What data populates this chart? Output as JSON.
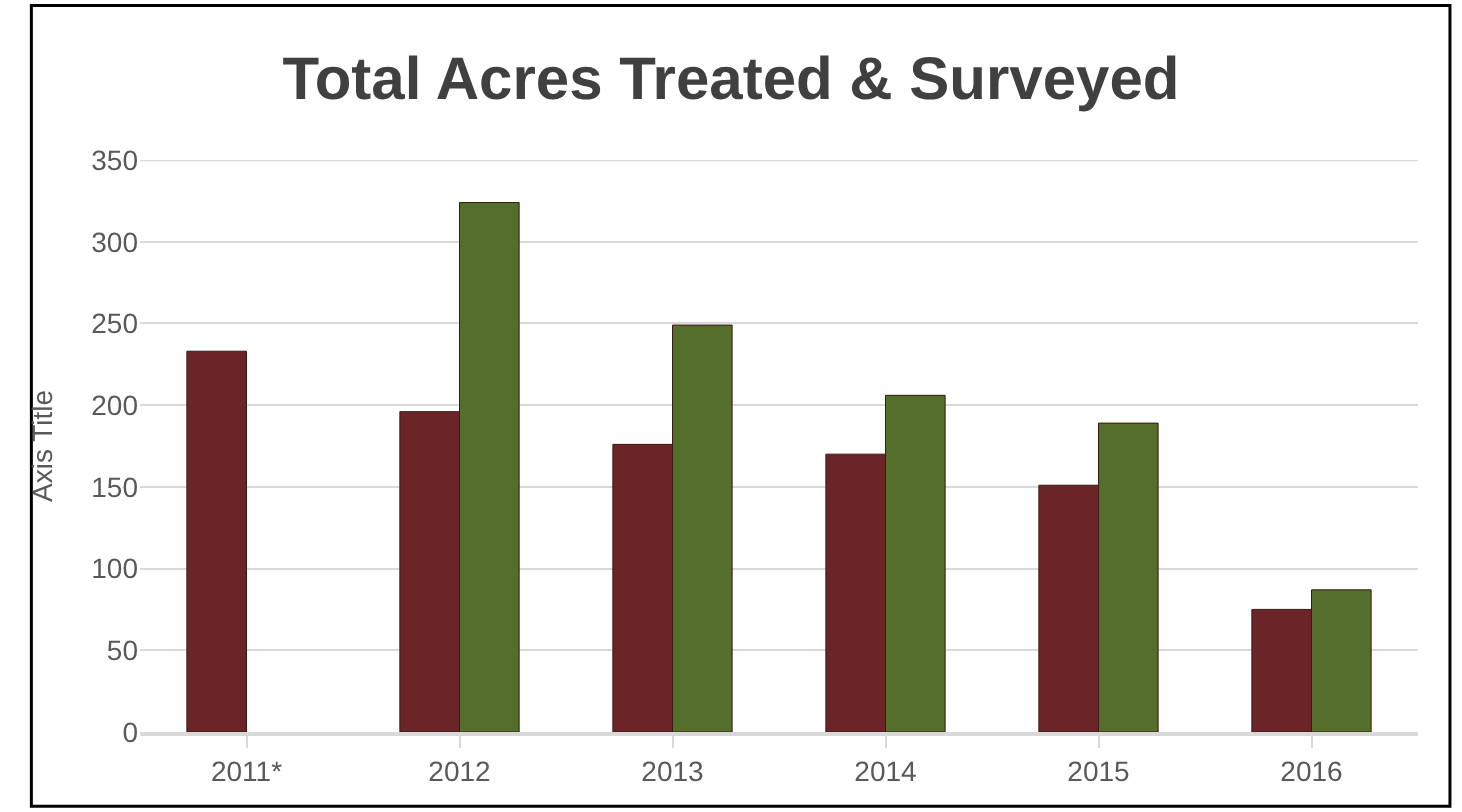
{
  "chart_data": {
    "type": "bar",
    "title": "Total Acres Treated & Surveyed",
    "ylabel": "Axis Title",
    "categories": [
      "2011*",
      "2012",
      "2013",
      "2014",
      "2015",
      "2016"
    ],
    "series": [
      {
        "color": "#6b2427",
        "values": [
          233,
          196,
          176,
          170,
          151,
          75
        ]
      },
      {
        "color": "#546e2c",
        "values": [
          null,
          324,
          249,
          206,
          189,
          87
        ]
      }
    ],
    "ylim": [
      0,
      350
    ],
    "yticks": [
      0,
      50,
      100,
      150,
      200,
      250,
      300,
      350
    ],
    "grid": "y"
  }
}
